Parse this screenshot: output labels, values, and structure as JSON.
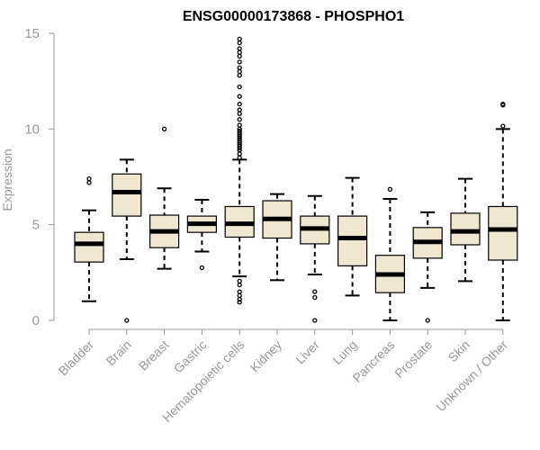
{
  "chart_data": {
    "type": "boxplot",
    "title": "ENSG00000173868 - PHOSPHO1",
    "xlabel": "",
    "ylabel": "Expression",
    "ylim": [
      0,
      15
    ],
    "yticks": [
      0,
      5,
      10,
      15
    ],
    "colors": {
      "box_fill": "#efe7d0",
      "stroke": "#000000",
      "axis": "#999999"
    },
    "categories": [
      "Bladder",
      "Brain",
      "Breast",
      "Gastric",
      "Hematopoietic cells",
      "Kidney",
      "Liver",
      "Lung",
      "Pancreas",
      "Prostate",
      "Skin",
      "Unknown / Other"
    ],
    "boxes": [
      {
        "name": "Bladder",
        "whisker_low": 1.0,
        "q1": 3.05,
        "median": 4.0,
        "q3": 4.6,
        "whisker_high": 5.75,
        "outliers": [
          7.2,
          7.4
        ]
      },
      {
        "name": "Brain",
        "whisker_low": 3.2,
        "q1": 5.45,
        "median": 6.7,
        "q3": 7.65,
        "whisker_high": 8.4,
        "outliers": [
          0.0
        ]
      },
      {
        "name": "Breast",
        "whisker_low": 2.7,
        "q1": 3.8,
        "median": 4.65,
        "q3": 5.5,
        "whisker_high": 6.9,
        "outliers": [
          10.0
        ]
      },
      {
        "name": "Gastric",
        "whisker_low": 3.6,
        "q1": 4.6,
        "median": 5.05,
        "q3": 5.45,
        "whisker_high": 6.3,
        "outliers": [
          2.75
        ]
      },
      {
        "name": "Hematopoietic cells",
        "whisker_low": 2.3,
        "q1": 4.35,
        "median": 5.05,
        "q3": 5.95,
        "whisker_high": 8.4,
        "outliers": [
          0.95,
          1.1,
          1.3,
          1.5,
          1.85,
          2.05,
          8.5,
          8.7,
          8.9,
          9.0,
          9.1,
          9.2,
          9.3,
          9.4,
          9.5,
          9.6,
          9.7,
          9.8,
          9.9,
          10.0,
          10.2,
          10.5,
          10.8,
          11.0,
          11.3,
          11.7,
          12.2,
          12.8,
          13.0,
          13.2,
          13.5,
          13.8,
          14.0,
          14.2,
          14.5,
          14.7
        ]
      },
      {
        "name": "Kidney",
        "whisker_low": 2.1,
        "q1": 4.3,
        "median": 5.3,
        "q3": 6.25,
        "whisker_high": 6.6,
        "outliers": []
      },
      {
        "name": "Liver",
        "whisker_low": 2.4,
        "q1": 4.0,
        "median": 4.8,
        "q3": 5.45,
        "whisker_high": 6.5,
        "outliers": [
          0.0,
          1.2,
          1.5
        ]
      },
      {
        "name": "Lung",
        "whisker_low": 1.3,
        "q1": 2.85,
        "median": 4.3,
        "q3": 5.45,
        "whisker_high": 7.45,
        "outliers": []
      },
      {
        "name": "Pancreas",
        "whisker_low": 0.0,
        "q1": 1.45,
        "median": 2.4,
        "q3": 3.4,
        "whisker_high": 6.35,
        "outliers": [
          6.85
        ]
      },
      {
        "name": "Prostate",
        "whisker_low": 1.7,
        "q1": 3.25,
        "median": 4.1,
        "q3": 4.85,
        "whisker_high": 5.65,
        "outliers": [
          0.0
        ]
      },
      {
        "name": "Skin",
        "whisker_low": 2.05,
        "q1": 3.95,
        "median": 4.65,
        "q3": 5.6,
        "whisker_high": 7.4,
        "outliers": []
      },
      {
        "name": "Unknown / Other",
        "whisker_low": 0.0,
        "q1": 3.15,
        "median": 4.75,
        "q3": 5.95,
        "whisker_high": 10.0,
        "outliers": [
          10.15,
          11.25,
          11.3
        ]
      }
    ]
  }
}
